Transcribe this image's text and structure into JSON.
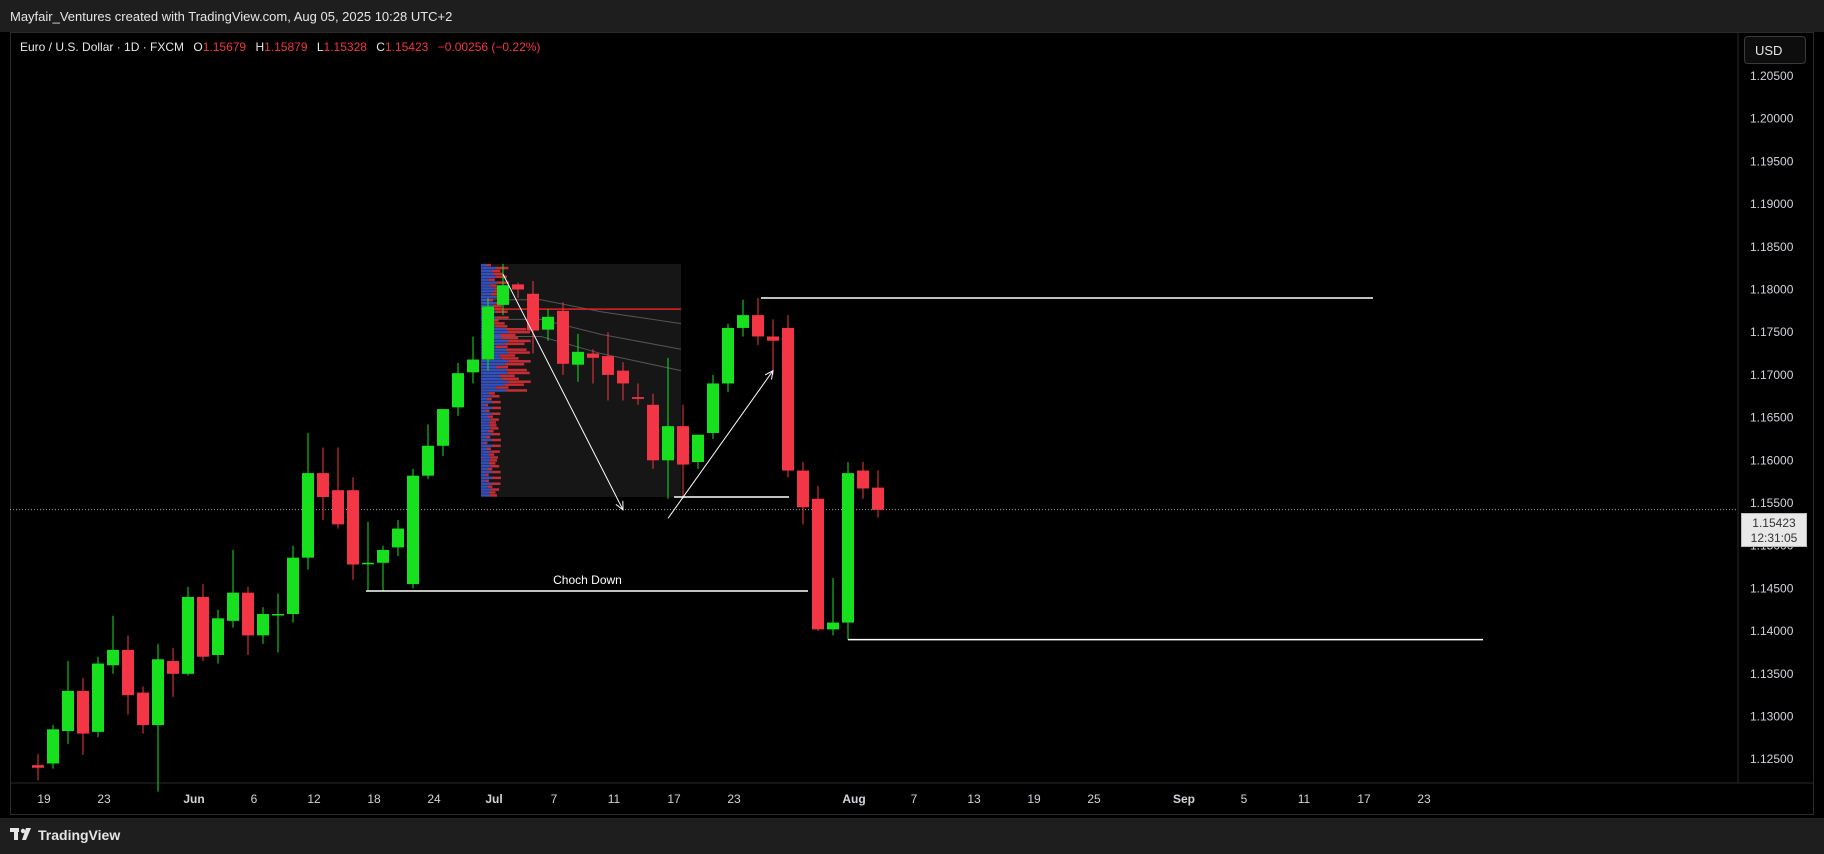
{
  "header": {
    "credit": "Mayfair_Ventures created with TradingView.com, Aug 05, 2025 10:28 UTC+2"
  },
  "legend": {
    "title": "Euro / U.S. Dollar · 1D · FXCM",
    "o_label": "O",
    "o_value": "1.15679",
    "h_label": "H",
    "h_value": "1.15879",
    "l_label": "L",
    "l_value": "1.15328",
    "c_label": "C",
    "c_value": "1.15423",
    "change": "−0.00256 (−0.22%)"
  },
  "currency_button": "USD",
  "last_price": {
    "price": "1.15423",
    "countdown": "12:31:05"
  },
  "footer": {
    "brand": "TradingView"
  },
  "colors": {
    "up": "#17e01f",
    "down": "#f23645",
    "background": "#000000",
    "annotation": "#ffffff",
    "volume_profile_red": "#e0323a",
    "volume_profile_blue": "#3a5bd9"
  },
  "chart_data": {
    "type": "candlestick",
    "symbol": "EURUSD",
    "timeframe": "1D",
    "ylim": [
      1.1225,
      1.2085
    ],
    "price_scale": [
      1.205,
      1.2,
      1.195,
      1.19,
      1.185,
      1.18,
      1.175,
      1.17,
      1.165,
      1.16,
      1.155,
      1.15,
      1.145,
      1.14,
      1.135,
      1.13,
      1.125
    ],
    "price_tick_labels": [
      "1.20500",
      "1.20000",
      "1.19500",
      "1.19000",
      "1.18500",
      "1.18000",
      "1.17500",
      "1.17000",
      "1.16500",
      "1.16000",
      "1.15500",
      "1.15000",
      "1.14500",
      "1.14000",
      "1.13500",
      "1.13000",
      "1.12500"
    ],
    "time_tick_labels": [
      "19",
      "23",
      "Jun",
      "6",
      "12",
      "18",
      "24",
      "Jul",
      "7",
      "11",
      "17",
      "23",
      "Aug",
      "7",
      "13",
      "19",
      "25",
      "Sep",
      "5",
      "11",
      "17",
      "23"
    ],
    "time_tick_slots": [
      0,
      4,
      10,
      14,
      18,
      22,
      26,
      30,
      34,
      38,
      42,
      46,
      54,
      58,
      62,
      66,
      70,
      76,
      80,
      84,
      88,
      92
    ],
    "candles": [
      {
        "slot": 0,
        "date": "2025-05-19",
        "o": 1.1243,
        "h": 1.1256,
        "l": 1.1225,
        "c": 1.124
      },
      {
        "slot": 1,
        "date": "2025-05-20",
        "o": 1.1245,
        "h": 1.129,
        "l": 1.1239,
        "c": 1.1285
      },
      {
        "slot": 2,
        "date": "2025-05-21",
        "o": 1.1283,
        "h": 1.1365,
        "l": 1.1268,
        "c": 1.133
      },
      {
        "slot": 3,
        "date": "2025-05-22",
        "o": 1.133,
        "h": 1.1345,
        "l": 1.1255,
        "c": 1.128
      },
      {
        "slot": 4,
        "date": "2025-05-23",
        "o": 1.1282,
        "h": 1.137,
        "l": 1.1276,
        "c": 1.1362
      },
      {
        "slot": 5,
        "date": "2025-05-26",
        "o": 1.136,
        "h": 1.1418,
        "l": 1.135,
        "c": 1.1378
      },
      {
        "slot": 6,
        "date": "2025-05-27",
        "o": 1.1378,
        "h": 1.1395,
        "l": 1.1302,
        "c": 1.1325
      },
      {
        "slot": 7,
        "date": "2025-05-28",
        "o": 1.1328,
        "h": 1.1335,
        "l": 1.128,
        "c": 1.129
      },
      {
        "slot": 8,
        "date": "2025-05-29",
        "o": 1.129,
        "h": 1.1385,
        "l": 1.1212,
        "c": 1.1367
      },
      {
        "slot": 9,
        "date": "2025-05-30",
        "o": 1.1365,
        "h": 1.138,
        "l": 1.1323,
        "c": 1.135
      },
      {
        "slot": 10,
        "date": "2025-06-02",
        "o": 1.135,
        "h": 1.1452,
        "l": 1.1348,
        "c": 1.144
      },
      {
        "slot": 11,
        "date": "2025-06-03",
        "o": 1.144,
        "h": 1.1455,
        "l": 1.1365,
        "c": 1.137
      },
      {
        "slot": 12,
        "date": "2025-06-04",
        "o": 1.1372,
        "h": 1.1425,
        "l": 1.1362,
        "c": 1.1415
      },
      {
        "slot": 13,
        "date": "2025-06-05",
        "o": 1.1412,
        "h": 1.1495,
        "l": 1.1404,
        "c": 1.1445
      },
      {
        "slot": 14,
        "date": "2025-06-06",
        "o": 1.1445,
        "h": 1.1452,
        "l": 1.1372,
        "c": 1.1395
      },
      {
        "slot": 15,
        "date": "2025-06-09",
        "o": 1.1395,
        "h": 1.1428,
        "l": 1.1385,
        "c": 1.142
      },
      {
        "slot": 16,
        "date": "2025-06-10",
        "o": 1.142,
        "h": 1.1444,
        "l": 1.1375,
        "c": 1.142
      },
      {
        "slot": 17,
        "date": "2025-06-11",
        "o": 1.142,
        "h": 1.15,
        "l": 1.141,
        "c": 1.1486
      },
      {
        "slot": 18,
        "date": "2025-06-12",
        "o": 1.1486,
        "h": 1.1632,
        "l": 1.1472,
        "c": 1.1585
      },
      {
        "slot": 19,
        "date": "2025-06-13",
        "o": 1.1585,
        "h": 1.1615,
        "l": 1.153,
        "c": 1.1557
      },
      {
        "slot": 20,
        "date": "2025-06-16",
        "o": 1.1565,
        "h": 1.1615,
        "l": 1.152,
        "c": 1.1525
      },
      {
        "slot": 21,
        "date": "2025-06-17",
        "o": 1.1565,
        "h": 1.158,
        "l": 1.146,
        "c": 1.1478
      },
      {
        "slot": 22,
        "date": "2025-06-18",
        "o": 1.148,
        "h": 1.1528,
        "l": 1.1448,
        "c": 1.148
      },
      {
        "slot": 23,
        "date": "2025-06-19",
        "o": 1.148,
        "h": 1.15,
        "l": 1.1447,
        "c": 1.1495
      },
      {
        "slot": 24,
        "date": "2025-06-20",
        "o": 1.1498,
        "h": 1.153,
        "l": 1.1488,
        "c": 1.152
      },
      {
        "slot": 25,
        "date": "2025-06-23",
        "o": 1.1455,
        "h": 1.159,
        "l": 1.145,
        "c": 1.1582
      },
      {
        "slot": 26,
        "date": "2025-06-24",
        "o": 1.1582,
        "h": 1.1642,
        "l": 1.1578,
        "c": 1.1617
      },
      {
        "slot": 27,
        "date": "2025-06-25",
        "o": 1.1617,
        "h": 1.166,
        "l": 1.1605,
        "c": 1.166
      },
      {
        "slot": 28,
        "date": "2025-06-26",
        "o": 1.1662,
        "h": 1.1714,
        "l": 1.1652,
        "c": 1.1702
      },
      {
        "slot": 29,
        "date": "2025-06-27",
        "o": 1.1703,
        "h": 1.1745,
        "l": 1.169,
        "c": 1.1718
      },
      {
        "slot": 30,
        "date": "2025-06-30",
        "o": 1.1718,
        "h": 1.179,
        "l": 1.1705,
        "c": 1.178
      },
      {
        "slot": 31,
        "date": "2025-07-01",
        "o": 1.1782,
        "h": 1.183,
        "l": 1.177,
        "c": 1.1805
      },
      {
        "slot": 32,
        "date": "2025-07-02",
        "o": 1.1806,
        "h": 1.1808,
        "l": 1.179,
        "c": 1.18
      },
      {
        "slot": 33,
        "date": "2025-07-03",
        "o": 1.1795,
        "h": 1.181,
        "l": 1.1725,
        "c": 1.1752
      },
      {
        "slot": 34,
        "date": "2025-07-04",
        "o": 1.1753,
        "h": 1.1777,
        "l": 1.174,
        "c": 1.1768
      },
      {
        "slot": 35,
        "date": "2025-07-07",
        "o": 1.1775,
        "h": 1.1785,
        "l": 1.17,
        "c": 1.1713
      },
      {
        "slot": 36,
        "date": "2025-07-08",
        "o": 1.1712,
        "h": 1.1748,
        "l": 1.1692,
        "c": 1.1727
      },
      {
        "slot": 37,
        "date": "2025-07-09",
        "o": 1.1725,
        "h": 1.173,
        "l": 1.169,
        "c": 1.172
      },
      {
        "slot": 38,
        "date": "2025-07-10",
        "o": 1.1722,
        "h": 1.175,
        "l": 1.167,
        "c": 1.17
      },
      {
        "slot": 39,
        "date": "2025-07-11",
        "o": 1.1705,
        "h": 1.1715,
        "l": 1.167,
        "c": 1.169
      },
      {
        "slot": 40,
        "date": "2025-07-14",
        "o": 1.1674,
        "h": 1.169,
        "l": 1.1665,
        "c": 1.1672
      },
      {
        "slot": 41,
        "date": "2025-07-15",
        "o": 1.1665,
        "h": 1.1678,
        "l": 1.159,
        "c": 1.16
      },
      {
        "slot": 42,
        "date": "2025-07-16",
        "o": 1.16,
        "h": 1.172,
        "l": 1.1555,
        "c": 1.164
      },
      {
        "slot": 43,
        "date": "2025-07-17",
        "o": 1.164,
        "h": 1.1665,
        "l": 1.1555,
        "c": 1.1595
      },
      {
        "slot": 44,
        "date": "2025-07-18",
        "o": 1.1598,
        "h": 1.163,
        "l": 1.159,
        "c": 1.163
      },
      {
        "slot": 45,
        "date": "2025-07-21",
        "o": 1.1632,
        "h": 1.17,
        "l": 1.1625,
        "c": 1.169
      },
      {
        "slot": 46,
        "date": "2025-07-22",
        "o": 1.169,
        "h": 1.176,
        "l": 1.168,
        "c": 1.1755
      },
      {
        "slot": 47,
        "date": "2025-07-23",
        "o": 1.1755,
        "h": 1.1788,
        "l": 1.1745,
        "c": 1.177
      },
      {
        "slot": 48,
        "date": "2025-07-24",
        "o": 1.177,
        "h": 1.179,
        "l": 1.1735,
        "c": 1.1745
      },
      {
        "slot": 49,
        "date": "2025-07-25",
        "o": 1.1745,
        "h": 1.1765,
        "l": 1.17,
        "c": 1.174
      },
      {
        "slot": 50,
        "date": "2025-07-28",
        "o": 1.1755,
        "h": 1.177,
        "l": 1.158,
        "c": 1.1588
      },
      {
        "slot": 51,
        "date": "2025-07-29",
        "o": 1.1588,
        "h": 1.1598,
        "l": 1.1525,
        "c": 1.1545
      },
      {
        "slot": 52,
        "date": "2025-07-30",
        "o": 1.1555,
        "h": 1.157,
        "l": 1.14,
        "c": 1.1402
      },
      {
        "slot": 53,
        "date": "2025-07-31",
        "o": 1.1402,
        "h": 1.1462,
        "l": 1.1395,
        "c": 1.141
      },
      {
        "slot": 54,
        "date": "2025-08-01",
        "o": 1.141,
        "h": 1.1598,
        "l": 1.139,
        "c": 1.1585
      },
      {
        "slot": 55,
        "date": "2025-08-04",
        "o": 1.1588,
        "h": 1.1598,
        "l": 1.1555,
        "c": 1.1567
      },
      {
        "slot": 56,
        "date": "2025-08-05",
        "o": 1.1568,
        "h": 1.1588,
        "l": 1.1533,
        "c": 1.1542
      }
    ],
    "annotations": {
      "choch_label": "Choch Down",
      "choch_level": 1.1447,
      "choch_from_slot": 22,
      "choch_to_slot": 51,
      "high_level": 1.179,
      "high_from_slot": 48,
      "high_to_slot": 88,
      "low_level": 1.139,
      "low_from_slot": 54,
      "low_to_slot": 93,
      "mid_level": 1.1557,
      "mid_from_slot": 42,
      "mid_to_slot": 49,
      "poc_level": 1.1777,
      "arrow_down": {
        "from_slot": 31,
        "from_price": 1.1818,
        "to_slot": 39,
        "to_price": 1.1542
      },
      "arrow_up": {
        "from_slot": 42,
        "from_price": 1.1532,
        "to_slot": 49,
        "to_price": 1.1705
      },
      "volume_profile": {
        "from_slot": 30,
        "to_slot": 43,
        "top": 1.183,
        "bottom": 1.1557
      }
    }
  }
}
